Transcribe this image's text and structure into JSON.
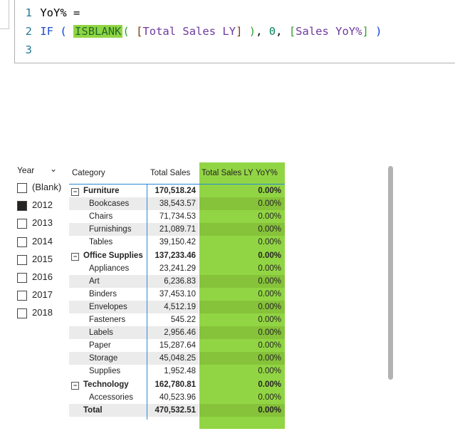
{
  "editor": {
    "lines": [
      {
        "n": "1",
        "parts": {
          "a": "YoY% ="
        }
      },
      {
        "n": "2",
        "parts": {
          "if": "IF",
          "p1": "(",
          "fn": "ISBLANK",
          "p2": "(",
          "b1": "[",
          "m1": "Total Sales LY",
          "b2": "]",
          "p3": ")",
          "c1": ",",
          "zero": "0",
          "c2": ",",
          "b3": "[",
          "m2": "Sales YoY%",
          "b4": "]",
          "p4": ")"
        }
      },
      {
        "n": "3"
      }
    ]
  },
  "slicer": {
    "title": "Year",
    "items": [
      {
        "label": "(Blank)",
        "checked": false
      },
      {
        "label": "2012",
        "checked": true
      },
      {
        "label": "2013",
        "checked": false
      },
      {
        "label": "2014",
        "checked": false
      },
      {
        "label": "2015",
        "checked": false
      },
      {
        "label": "2016",
        "checked": false
      },
      {
        "label": "2017",
        "checked": false
      },
      {
        "label": "2018",
        "checked": false
      }
    ]
  },
  "table": {
    "headers": [
      "Category",
      "Total Sales",
      "Total Sales LY",
      "YoY%"
    ],
    "highlight_color": "#92d544",
    "rows": [
      {
        "cat": "Furniture",
        "sales": "170,518.24",
        "yoy": "0.00%",
        "level": "group"
      },
      {
        "cat": "Bookcases",
        "sales": "38,543.57",
        "yoy": "0.00%"
      },
      {
        "cat": "Chairs",
        "sales": "71,734.53",
        "yoy": "0.00%"
      },
      {
        "cat": "Furnishings",
        "sales": "21,089.71",
        "yoy": "0.00%"
      },
      {
        "cat": "Tables",
        "sales": "39,150.42",
        "yoy": "0.00%"
      },
      {
        "cat": "Office Supplies",
        "sales": "137,233.46",
        "yoy": "0.00%",
        "level": "group"
      },
      {
        "cat": "Appliances",
        "sales": "23,241.29",
        "yoy": "0.00%"
      },
      {
        "cat": "Art",
        "sales": "6,236.83",
        "yoy": "0.00%"
      },
      {
        "cat": "Binders",
        "sales": "37,453.10",
        "yoy": "0.00%"
      },
      {
        "cat": "Envelopes",
        "sales": "4,512.19",
        "yoy": "0.00%"
      },
      {
        "cat": "Fasteners",
        "sales": "545.22",
        "yoy": "0.00%"
      },
      {
        "cat": "Labels",
        "sales": "2,956.46",
        "yoy": "0.00%"
      },
      {
        "cat": "Paper",
        "sales": "15,287.64",
        "yoy": "0.00%"
      },
      {
        "cat": "Storage",
        "sales": "45,048.25",
        "yoy": "0.00%"
      },
      {
        "cat": "Supplies",
        "sales": "1,952.48",
        "yoy": "0.00%"
      },
      {
        "cat": "Technology",
        "sales": "162,780.81",
        "yoy": "0.00%",
        "level": "group"
      },
      {
        "cat": "Accessories",
        "sales": "40,523.96",
        "yoy": "0.00%"
      },
      {
        "cat": "Total",
        "sales": "470,532.51",
        "yoy": "0.00%",
        "level": "total"
      }
    ]
  }
}
